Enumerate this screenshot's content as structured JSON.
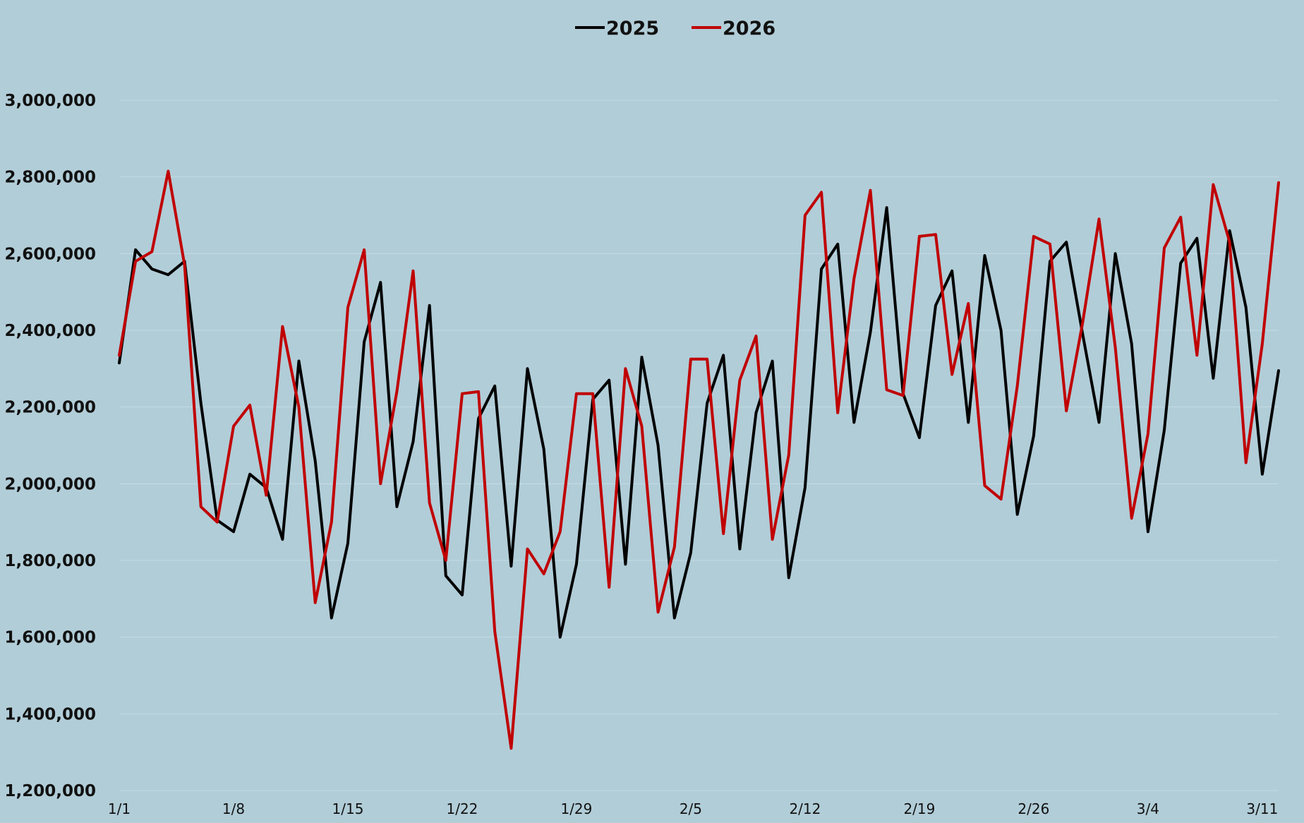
{
  "chart_data": {
    "type": "line",
    "title": "",
    "xlabel": "",
    "ylabel": "",
    "ylim": [
      1200000,
      3000000
    ],
    "yticks": [
      1200000,
      1400000,
      1600000,
      1800000,
      2000000,
      2200000,
      2400000,
      2600000,
      2800000,
      3000000
    ],
    "ytick_labels": [
      "1,200,000",
      "1,400,000",
      "1,600,000",
      "1,800,000",
      "2,000,000",
      "2,200,000",
      "2,400,000",
      "2,600,000",
      "2,800,000",
      "3,000,000"
    ],
    "xtick_labels": [
      "1/1",
      "1/8",
      "1/15",
      "1/22",
      "1/29",
      "2/5",
      "2/12",
      "2/19",
      "2/26",
      "3/4",
      "3/11"
    ],
    "xtick_positions": [
      1,
      8,
      15,
      22,
      29,
      36,
      43,
      50,
      57,
      64,
      71
    ],
    "x": [
      1,
      2,
      3,
      4,
      5,
      6,
      7,
      8,
      9,
      10,
      11,
      12,
      13,
      14,
      15,
      16,
      17,
      18,
      19,
      20,
      21,
      22,
      23,
      24,
      25,
      26,
      27,
      28,
      29,
      30,
      31,
      32,
      33,
      34,
      35,
      36,
      37,
      38,
      39,
      40,
      41,
      42,
      43,
      44,
      45,
      46,
      47,
      48,
      49,
      50,
      51,
      52,
      53,
      54,
      55,
      56,
      57,
      58,
      59,
      60,
      61,
      62,
      63,
      64,
      65,
      66,
      67,
      68,
      69,
      70,
      71,
      72
    ],
    "grid": true,
    "legend_position": "top-center",
    "series": [
      {
        "name": "2025",
        "color": "#000000",
        "values": [
          2315000,
          2610000,
          2560000,
          2545000,
          2580000,
          2210000,
          1905000,
          1875000,
          2025000,
          1990000,
          1855000,
          2320000,
          2060000,
          1650000,
          1845000,
          2370000,
          2525000,
          1940000,
          2110000,
          2465000,
          1760000,
          1710000,
          2170000,
          2255000,
          1785000,
          2300000,
          2090000,
          1600000,
          1790000,
          2220000,
          2270000,
          1790000,
          2330000,
          2100000,
          1650000,
          1820000,
          2210000,
          2335000,
          1830000,
          2185000,
          2320000,
          1755000,
          1990000,
          2560000,
          2625000,
          2160000,
          2395000,
          2720000,
          2235000,
          2120000,
          2465000,
          2555000,
          2160000,
          2595000,
          2400000,
          1920000,
          2125000,
          2580000,
          2630000,
          2390000,
          2160000,
          2600000,
          2365000,
          1875000,
          2140000,
          2575000,
          2640000,
          2275000,
          2660000,
          2460000,
          2025000,
          2295000
        ]
      },
      {
        "name": "2026",
        "color": "#c00000",
        "values": [
          2335000,
          2580000,
          2605000,
          2815000,
          2570000,
          1940000,
          1900000,
          2150000,
          2205000,
          1970000,
          2410000,
          2200000,
          1690000,
          1900000,
          2460000,
          2610000,
          2000000,
          2240000,
          2555000,
          1950000,
          1800000,
          2235000,
          2240000,
          1615000,
          1310000,
          1830000,
          1765000,
          1875000,
          2235000,
          2235000,
          1730000,
          2300000,
          2150000,
          1665000,
          1835000,
          2325000,
          2325000,
          1870000,
          2270000,
          2385000,
          1855000,
          2075000,
          2700000,
          2760000,
          2185000,
          2535000,
          2765000,
          2245000,
          2230000,
          2645000,
          2650000,
          2285000,
          2470000,
          1995000,
          1960000,
          2255000,
          2645000,
          2625000,
          2190000,
          2420000,
          2690000,
          2355000,
          1910000,
          2130000,
          2615000,
          2695000,
          2335000,
          2780000,
          2630000,
          2055000,
          2365000,
          2785000
        ]
      }
    ]
  }
}
